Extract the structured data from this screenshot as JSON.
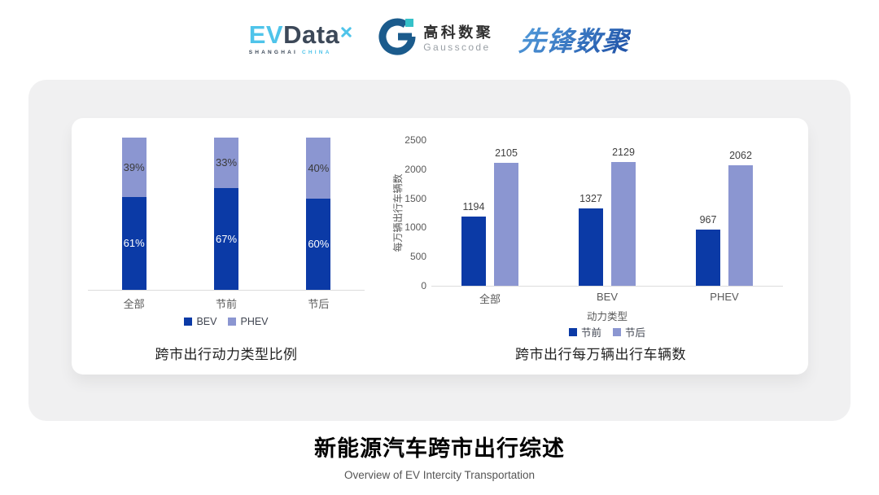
{
  "header": {
    "evdata": {
      "part_ev": "EV",
      "part_data": "Data",
      "mark_icon": "pinwheel-icon",
      "sub_left": "SHANGHAI",
      "sub_right": "CHINA"
    },
    "gausscode": {
      "mark_icon": "g-mark-icon",
      "name_cn": "高科数聚",
      "name_en": "Gausscode"
    },
    "xianfeng": {
      "name": "先锋数聚"
    }
  },
  "colors": {
    "primary_dark_blue": "#0B3AA6",
    "primary_light_blue": "#8B96D1",
    "card_gray": "#F0F0F1",
    "axis_line_gray": "#DCDCDC",
    "axis_label_gray": "#595959",
    "evdata_blue": "#4FC4EA",
    "evdata_slate": "#3C4858",
    "gausscode_blue": "#1B5B8C",
    "gausscode_teal": "#35C1C9",
    "xianfeng_blue": "#2B66BD"
  },
  "chart_data": [
    {
      "type": "bar",
      "subtype": "stacked-percent",
      "title": "跨市出行动力类型比例",
      "categories": [
        "全部",
        "节前",
        "节后"
      ],
      "series": [
        {
          "name": "BEV",
          "color": "#0B3AA6",
          "values": [
            61,
            67,
            60
          ],
          "value_labels": [
            "61%",
            "67%",
            "60%"
          ],
          "label_color": "#FFFFFF"
        },
        {
          "name": "PHEV",
          "color": "#8B96D1",
          "values": [
            39,
            33,
            40
          ],
          "value_labels": [
            "39%",
            "33%",
            "40%"
          ],
          "label_color": "#3A3A3A"
        }
      ],
      "total": 100,
      "xlabel": "",
      "ylabel": "",
      "grid": false,
      "legend_position": "bottom"
    },
    {
      "type": "bar",
      "subtype": "grouped",
      "title": "跨市出行每万辆出行车辆数",
      "categories": [
        "全部",
        "BEV",
        "PHEV"
      ],
      "series": [
        {
          "name": "节前",
          "color": "#0B3AA6",
          "values": [
            1194,
            1327,
            967
          ]
        },
        {
          "name": "节后",
          "color": "#8B96D1",
          "values": [
            2105,
            2129,
            2062
          ]
        }
      ],
      "xlabel": "动力类型",
      "ylabel": "每万辆出行车辆数",
      "ylim": [
        0,
        2500
      ],
      "yticks": [
        0,
        500,
        1000,
        1500,
        2000,
        2500
      ],
      "grid": false,
      "legend_position": "bottom"
    }
  ],
  "footer": {
    "title": "新能源汽车跨市出行综述",
    "subtitle": "Overview of EV Intercity Transportation"
  }
}
